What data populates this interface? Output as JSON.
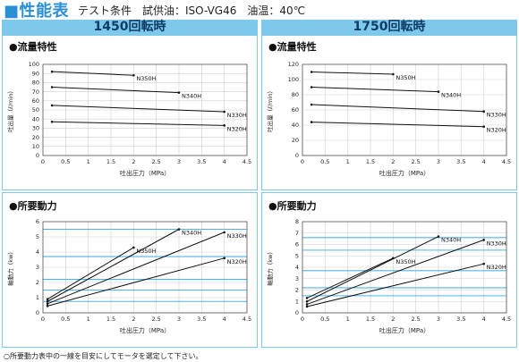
{
  "header": {
    "title": "■性能表",
    "conditions": "テスト条件　試供油：ISO-VG46　油温：40℃"
  },
  "columns": [
    {
      "label": "1450回転時"
    },
    {
      "label": "1750回転時"
    }
  ],
  "sections": {
    "flow_title": "●流量特性",
    "power_title": "●所要動力"
  },
  "footnote": "○所要動力表中の一線を目安にしてモータを選定して下さい。",
  "chart_data": [
    {
      "id": "flow-1450",
      "type": "line",
      "xlabel": "吐出圧力（MPa）",
      "ylabel": "吐出量（ℓ/min）",
      "xlim": [
        0,
        4.5
      ],
      "ylim": [
        0,
        100
      ],
      "xticks": [
        0,
        0.5,
        1,
        1.5,
        2,
        2.5,
        3,
        3.5,
        4,
        4.5
      ],
      "yticks": [
        0,
        10,
        20,
        30,
        40,
        50,
        60,
        70,
        80,
        90,
        100
      ],
      "xtick_labels": [
        "0",
        "0.5",
        "1",
        "1.5",
        "2",
        "2.5",
        "3",
        "3.5",
        "4",
        "4.5"
      ],
      "ytick_labels": [
        "0",
        "10",
        "20",
        "30",
        "40",
        "50",
        "60",
        "70",
        "80",
        "90",
        "100"
      ],
      "grid": true,
      "series": [
        {
          "name": "N350H",
          "x": [
            0.2,
            2.0
          ],
          "y": [
            92,
            88
          ]
        },
        {
          "name": "N340H",
          "x": [
            0.2,
            3.0
          ],
          "y": [
            75,
            69
          ]
        },
        {
          "name": "N330H",
          "x": [
            0.2,
            4.0
          ],
          "y": [
            55,
            48
          ]
        },
        {
          "name": "N320H",
          "x": [
            0.2,
            4.0
          ],
          "y": [
            37,
            33
          ]
        }
      ]
    },
    {
      "id": "flow-1750",
      "type": "line",
      "xlabel": "吐出圧力（MPa）",
      "ylabel": "吐出量（ℓ/min）",
      "xlim": [
        0,
        4.5
      ],
      "ylim": [
        0,
        120
      ],
      "xticks": [
        0,
        0.5,
        1,
        1.5,
        2,
        2.5,
        3,
        3.5,
        4,
        4.5
      ],
      "yticks": [
        0,
        20,
        40,
        60,
        80,
        100,
        120
      ],
      "xtick_labels": [
        "0",
        "0.5",
        "1",
        "1.5",
        "2",
        "2.5",
        "3",
        "3.5",
        "4",
        "4.5"
      ],
      "ytick_labels": [
        "0",
        "20",
        "40",
        "60",
        "80",
        "100",
        "120"
      ],
      "grid": true,
      "series": [
        {
          "name": "N350H",
          "x": [
            0.2,
            2.0
          ],
          "y": [
            110,
            107
          ]
        },
        {
          "name": "N340H",
          "x": [
            0.2,
            3.0
          ],
          "y": [
            90,
            84
          ]
        },
        {
          "name": "N330H",
          "x": [
            0.2,
            4.0
          ],
          "y": [
            67,
            58
          ]
        },
        {
          "name": "N320H",
          "x": [
            0.2,
            4.0
          ],
          "y": [
            44,
            38
          ]
        }
      ]
    },
    {
      "id": "power-1450",
      "type": "line",
      "xlabel": "吐出圧力（MPa）",
      "ylabel": "軸動力（kw）",
      "xlim": [
        0,
        4.5
      ],
      "ylim": [
        0,
        6
      ],
      "xticks": [
        0,
        0.5,
        1,
        1.5,
        2,
        2.5,
        3,
        3.5,
        4,
        4.5
      ],
      "yticks": [
        0,
        1,
        2,
        3,
        4,
        5,
        6
      ],
      "xtick_labels": [
        "0",
        "0.5",
        "1",
        "1.5",
        "2",
        "2.5",
        "3",
        "3.5",
        "4",
        "4.5"
      ],
      "ytick_labels": [
        "0",
        "1",
        "2",
        "3",
        "4",
        "5",
        "6"
      ],
      "grid": true,
      "hlines": [
        0.75,
        1.5,
        2.2,
        3.7,
        5.5
      ],
      "series": [
        {
          "name": "N350H",
          "x": [
            0.1,
            2.0
          ],
          "y": [
            0.9,
            4.3
          ]
        },
        {
          "name": "N340H",
          "x": [
            0.1,
            3.0
          ],
          "y": [
            0.75,
            5.5
          ]
        },
        {
          "name": "N330H",
          "x": [
            0.1,
            4.0
          ],
          "y": [
            0.6,
            5.3
          ]
        },
        {
          "name": "N320H",
          "x": [
            0.1,
            4.0
          ],
          "y": [
            0.45,
            3.6
          ]
        }
      ]
    },
    {
      "id": "power-1750",
      "type": "line",
      "xlabel": "吐出圧力（MPa）",
      "ylabel": "軸動力（kw）",
      "xlim": [
        0,
        4.5
      ],
      "ylim": [
        0,
        8
      ],
      "xticks": [
        0,
        0.5,
        1,
        1.5,
        2,
        2.5,
        3,
        3.5,
        4,
        4.5
      ],
      "yticks": [
        0,
        1,
        2,
        3,
        4,
        5,
        6,
        7,
        8
      ],
      "xtick_labels": [
        "0",
        "0.5",
        "1",
        "1.5",
        "2",
        "2.5",
        "3",
        "3.5",
        "4",
        "4.5"
      ],
      "ytick_labels": [
        "0",
        "1",
        "2",
        "3",
        "4",
        "5",
        "6",
        "7",
        "8"
      ],
      "grid": true,
      "hlines": [
        1.5,
        2.2,
        3.7,
        5.5,
        6.6
      ],
      "series": [
        {
          "name": "N350H",
          "x": [
            0.1,
            2.0
          ],
          "y": [
            1.3,
            4.8
          ]
        },
        {
          "name": "N340H",
          "x": [
            0.1,
            3.0
          ],
          "y": [
            1.0,
            6.7
          ]
        },
        {
          "name": "N330H",
          "x": [
            0.1,
            4.0
          ],
          "y": [
            0.75,
            6.4
          ]
        },
        {
          "name": "N320H",
          "x": [
            0.1,
            4.0
          ],
          "y": [
            0.55,
            4.3
          ]
        }
      ]
    }
  ]
}
